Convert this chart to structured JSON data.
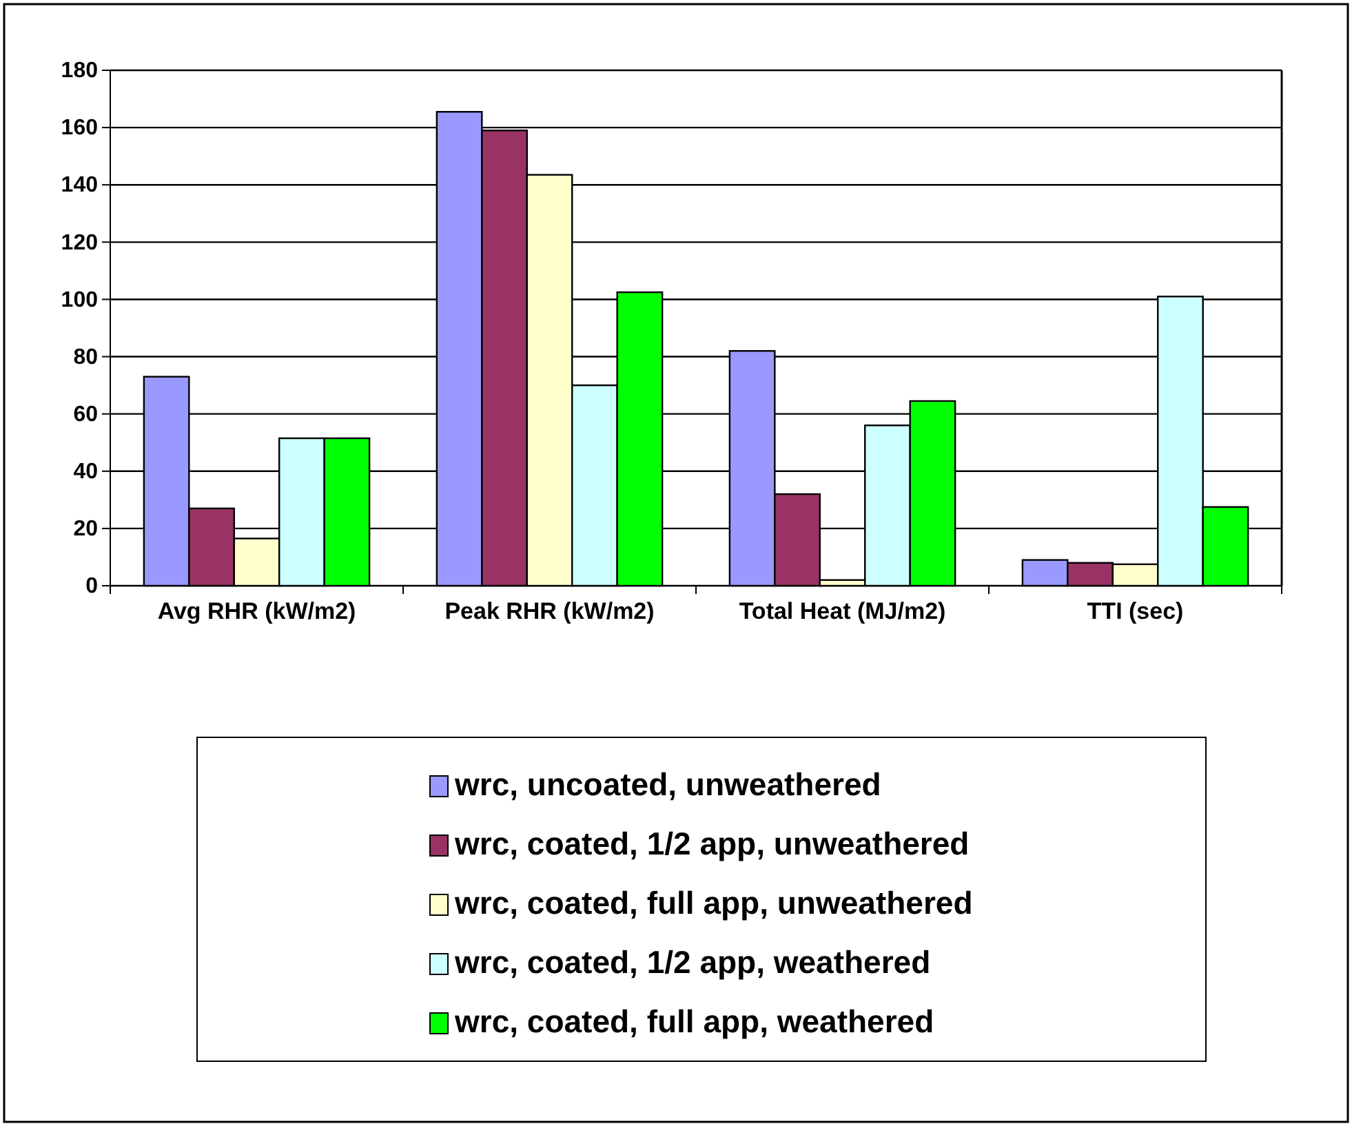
{
  "chart_data": {
    "type": "bar",
    "categories": [
      "Avg RHR (kW/m2)",
      "Peak RHR (kW/m2)",
      "Total Heat (MJ/m2)",
      "TTI (sec)"
    ],
    "series": [
      {
        "name": "wrc, uncoated, unweathered",
        "color": "#9999ff",
        "values": [
          73,
          165.5,
          82,
          9
        ]
      },
      {
        "name": "wrc, coated, 1/2 app, unweathered",
        "color": "#993366",
        "values": [
          27,
          159,
          32,
          8
        ]
      },
      {
        "name": "wrc, coated, full app, unweathered",
        "color": "#ffffcc",
        "values": [
          16.5,
          143.5,
          2,
          7.5
        ]
      },
      {
        "name": "wrc, coated, 1/2 app, weathered",
        "color": "#ccffff",
        "values": [
          51.5,
          70,
          56,
          101
        ]
      },
      {
        "name": "wrc, coated, full app, weathered",
        "color": "#00ff00",
        "values": [
          51.5,
          102.5,
          64.5,
          27.5
        ]
      }
    ],
    "ylim": [
      0,
      180
    ],
    "yticks": [
      0,
      20,
      40,
      60,
      80,
      100,
      120,
      140,
      160,
      180
    ],
    "grid": "y",
    "legend": "bottom"
  }
}
